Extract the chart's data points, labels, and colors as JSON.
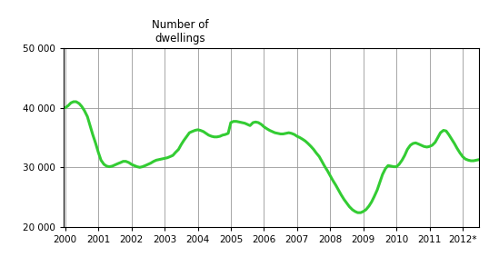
{
  "title": "Number of\ndwellings",
  "ylim": [
    20000,
    50000
  ],
  "yticks": [
    20000,
    30000,
    40000,
    50000
  ],
  "ytick_labels": [
    "20 000",
    "30 000",
    "40 000",
    "50 000"
  ],
  "xtick_labels": [
    "2000",
    "2001",
    "2002",
    "2003",
    "2004",
    "2005",
    "2006",
    "2007",
    "2008",
    "2009",
    "2010",
    "2011",
    "2012*"
  ],
  "line_color": "#33cc33",
  "line_width": 2.2,
  "background_color": "#ffffff",
  "grid_color": "#999999",
  "x": [
    0.0,
    0.08,
    0.17,
    0.25,
    0.33,
    0.42,
    0.5,
    0.58,
    0.67,
    0.75,
    0.83,
    0.92,
    1.0,
    1.08,
    1.17,
    1.25,
    1.33,
    1.42,
    1.5,
    1.58,
    1.67,
    1.75,
    1.83,
    1.92,
    2.0,
    2.08,
    2.17,
    2.25,
    2.33,
    2.42,
    2.5,
    2.58,
    2.67,
    2.75,
    2.83,
    2.92,
    3.0,
    3.08,
    3.17,
    3.25,
    3.33,
    3.42,
    3.5,
    3.58,
    3.67,
    3.75,
    3.83,
    3.92,
    4.0,
    4.08,
    4.17,
    4.25,
    4.33,
    4.42,
    4.5,
    4.58,
    4.67,
    4.75,
    4.83,
    4.92,
    5.0,
    5.08,
    5.17,
    5.25,
    5.33,
    5.42,
    5.5,
    5.58,
    5.67,
    5.75,
    5.83,
    5.92,
    6.0,
    6.08,
    6.17,
    6.25,
    6.33,
    6.42,
    6.5,
    6.58,
    6.67,
    6.75,
    6.83,
    6.92,
    7.0,
    7.08,
    7.17,
    7.25,
    7.33,
    7.42,
    7.5,
    7.58,
    7.67,
    7.75,
    7.83,
    7.92,
    8.0,
    8.08,
    8.17,
    8.25,
    8.33,
    8.42,
    8.5,
    8.58,
    8.67,
    8.75,
    8.83,
    8.92,
    9.0,
    9.08,
    9.17,
    9.25,
    9.33,
    9.42,
    9.5,
    9.58,
    9.67,
    9.75,
    9.83,
    9.92,
    10.0,
    10.08,
    10.17,
    10.25,
    10.33,
    10.42,
    10.5,
    10.58,
    10.67,
    10.75,
    10.83,
    10.92,
    11.0,
    11.08,
    11.17,
    11.25,
    11.33,
    11.42,
    11.5,
    11.58,
    11.67,
    11.75,
    11.83,
    11.92,
    12.0,
    12.08,
    12.17,
    12.25,
    12.33,
    12.42,
    12.5
  ],
  "y": [
    40000,
    40300,
    40800,
    41000,
    41000,
    40700,
    40200,
    39500,
    38500,
    37000,
    35500,
    34000,
    32500,
    31200,
    30500,
    30200,
    30100,
    30200,
    30400,
    30600,
    30800,
    31000,
    31000,
    30800,
    30500,
    30300,
    30100,
    30000,
    30100,
    30300,
    30500,
    30700,
    31000,
    31200,
    31300,
    31400,
    31500,
    31600,
    31800,
    32000,
    32500,
    33000,
    33800,
    34500,
    35200,
    35800,
    36000,
    36200,
    36300,
    36200,
    36000,
    35700,
    35400,
    35200,
    35100,
    35100,
    35200,
    35400,
    35500,
    35700,
    37500,
    37700,
    37700,
    37600,
    37500,
    37400,
    37200,
    37000,
    37500,
    37600,
    37500,
    37200,
    36800,
    36500,
    36200,
    36000,
    35800,
    35700,
    35600,
    35600,
    35700,
    35800,
    35700,
    35500,
    35200,
    35000,
    34700,
    34400,
    34000,
    33500,
    33000,
    32400,
    31800,
    31000,
    30200,
    29400,
    28600,
    27800,
    27000,
    26200,
    25400,
    24600,
    24000,
    23400,
    22900,
    22600,
    22400,
    22400,
    22600,
    22900,
    23500,
    24200,
    25100,
    26200,
    27500,
    28800,
    29800,
    30300,
    30200,
    30100,
    30100,
    30500,
    31200,
    32000,
    33000,
    33700,
    34000,
    34100,
    33900,
    33700,
    33500,
    33400,
    33500,
    33700,
    34200,
    35000,
    35800,
    36200,
    36100,
    35500,
    34700,
    34000,
    33200,
    32400,
    31800,
    31400,
    31200,
    31100,
    31100,
    31200,
    31300
  ]
}
